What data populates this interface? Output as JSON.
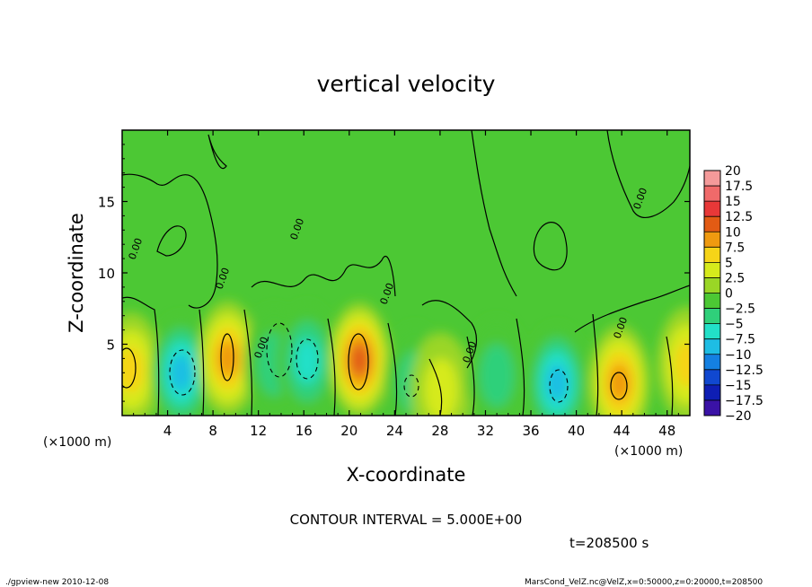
{
  "chart_data": {
    "type": "heatmap",
    "title": "vertical velocity",
    "xlabel": "X-coordinate",
    "ylabel": "Z-coordinate",
    "x_unit_left": "(×1000 m)",
    "x_unit_right": "(×1000 m)",
    "xlim": [
      0,
      50
    ],
    "ylim": [
      0,
      20
    ],
    "x_ticks": [
      4,
      8,
      12,
      16,
      20,
      24,
      28,
      32,
      36,
      40,
      44,
      48
    ],
    "y_ticks": [
      5,
      10,
      15
    ],
    "colorbar": {
      "levels": [
        20,
        17.5,
        15,
        12.5,
        10,
        7.5,
        5,
        2.5,
        0,
        -2.5,
        -5,
        -7.5,
        -10,
        -12.5,
        -15,
        -17.5,
        -20
      ],
      "colors": [
        "#f49a9a",
        "#f06a6a",
        "#e83838",
        "#e25b14",
        "#ef9a10",
        "#f6d418",
        "#d6ea1c",
        "#9ad626",
        "#4cc834",
        "#2fd07a",
        "#22e0c8",
        "#1ebde4",
        "#1480e2",
        "#1048d0",
        "#0e1eb4",
        "#3a12a6",
        "#6a14aa"
      ]
    },
    "annotations": {
      "contour_interval": "CONTOUR INTERVAL = 5.000E+00",
      "time": "t=208500 s",
      "contour_labels": [
        "0.00",
        "0.00",
        "0.00",
        "0.00",
        "0.00",
        "0.00",
        "0.00",
        "0.00"
      ]
    },
    "features": [
      {
        "x": 0.8,
        "z": 3.2,
        "w": 7.0,
        "kind": "updraft"
      },
      {
        "x": 5.2,
        "z": 3.0,
        "w": -9.5,
        "kind": "downdraft"
      },
      {
        "x": 9.3,
        "z": 4.0,
        "w": 9.0,
        "kind": "updraft"
      },
      {
        "x": 13.4,
        "z": 3.6,
        "w": -4.0,
        "kind": "downdraft"
      },
      {
        "x": 16.3,
        "z": 3.8,
        "w": -6.5,
        "kind": "downdraft"
      },
      {
        "x": 20.9,
        "z": 3.9,
        "w": 12.0,
        "kind": "updraft"
      },
      {
        "x": 25.8,
        "z": 2.3,
        "w": -3.0,
        "kind": "downdraft"
      },
      {
        "x": 28.1,
        "z": 1.8,
        "w": 4.0,
        "kind": "updraft"
      },
      {
        "x": 33.0,
        "z": 2.8,
        "w": -2.5,
        "kind": "downdraft"
      },
      {
        "x": 38.3,
        "z": 2.3,
        "w": -8.0,
        "kind": "downdraft"
      },
      {
        "x": 43.8,
        "z": 2.3,
        "w": 8.0,
        "kind": "updraft"
      },
      {
        "x": 49.8,
        "z": 3.6,
        "w": 6.0,
        "kind": "updraft"
      }
    ],
    "grid": false,
    "legend": "colorbar right"
  },
  "footer": {
    "left": "./gpview-new   2010-12-08",
    "right": "MarsCond_VelZ.nc@VelZ,x=0:50000,z=0:20000,t=208500"
  }
}
